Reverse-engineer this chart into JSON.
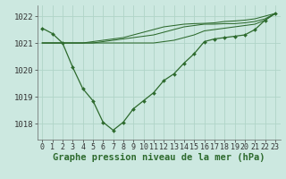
{
  "bg_color": "#cce8e0",
  "grid_color": "#b0d4c8",
  "line_color": "#2d6a2d",
  "marker_color": "#2d6a2d",
  "xlabel": "Graphe pression niveau de la mer (hPa)",
  "xlabel_fontsize": 7.5,
  "ylabel_fontsize": 6.5,
  "tick_fontsize": 6,
  "xlim": [
    -0.5,
    23.5
  ],
  "ylim": [
    1017.4,
    1022.4
  ],
  "yticks": [
    1018,
    1019,
    1020,
    1021,
    1022
  ],
  "xticks": [
    0,
    1,
    2,
    3,
    4,
    5,
    6,
    7,
    8,
    9,
    10,
    11,
    12,
    13,
    14,
    15,
    16,
    17,
    18,
    19,
    20,
    21,
    22,
    23
  ],
  "series": [
    {
      "data": [
        1021.55,
        1021.35,
        1021.0,
        1020.1,
        1019.3,
        1018.85,
        1018.05,
        1017.75,
        1018.05,
        1018.55,
        1018.85,
        1019.15,
        1019.6,
        1019.85,
        1020.25,
        1020.6,
        1021.05,
        1021.15,
        1021.2,
        1021.25,
        1021.3,
        1021.5,
        1021.85,
        1022.1
      ],
      "has_markers": true
    },
    {
      "data": [
        1021.0,
        1021.0,
        1021.0,
        1021.0,
        1021.0,
        1021.0,
        1021.0,
        1021.0,
        1021.0,
        1021.0,
        1021.0,
        1021.0,
        1021.05,
        1021.1,
        1021.2,
        1021.3,
        1021.45,
        1021.5,
        1021.55,
        1021.6,
        1021.65,
        1021.7,
        1021.85,
        1022.1
      ],
      "has_markers": false
    },
    {
      "data": [
        1021.0,
        1021.0,
        1021.0,
        1021.0,
        1021.0,
        1021.0,
        1021.05,
        1021.1,
        1021.15,
        1021.2,
        1021.25,
        1021.3,
        1021.4,
        1021.5,
        1021.6,
        1021.65,
        1021.7,
        1021.7,
        1021.72,
        1021.72,
        1021.75,
        1021.8,
        1021.9,
        1022.1
      ],
      "has_markers": false
    },
    {
      "data": [
        1021.0,
        1021.0,
        1021.0,
        1021.0,
        1021.0,
        1021.05,
        1021.1,
        1021.15,
        1021.2,
        1021.3,
        1021.4,
        1021.5,
        1021.6,
        1021.65,
        1021.7,
        1021.72,
        1021.73,
        1021.75,
        1021.8,
        1021.82,
        1021.85,
        1021.9,
        1022.0,
        1022.1
      ],
      "has_markers": false
    }
  ]
}
